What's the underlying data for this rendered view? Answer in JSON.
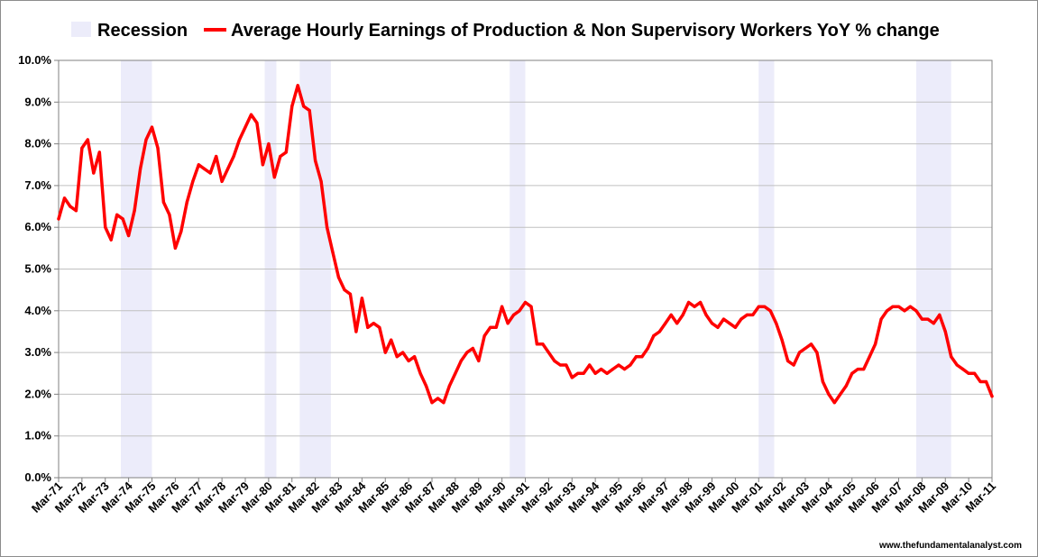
{
  "chart_data": {
    "type": "line",
    "title": "",
    "xlabel": "",
    "ylabel": "",
    "ylim": [
      0,
      10
    ],
    "y_ticks": [
      "0.0%",
      "1.0%",
      "2.0%",
      "3.0%",
      "4.0%",
      "5.0%",
      "6.0%",
      "7.0%",
      "8.0%",
      "9.0%",
      "10.0%"
    ],
    "x_ticks": [
      "Mar-71",
      "Mar-72",
      "Mar-73",
      "Mar-74",
      "Mar-75",
      "Mar-76",
      "Mar-77",
      "Mar-78",
      "Mar-79",
      "Mar-80",
      "Mar-81",
      "Mar-82",
      "Mar-83",
      "Mar-84",
      "Mar-85",
      "Mar-86",
      "Mar-87",
      "Mar-88",
      "Mar-89",
      "Mar-90",
      "Mar-91",
      "Mar-92",
      "Mar-93",
      "Mar-94",
      "Mar-95",
      "Mar-96",
      "Mar-97",
      "Mar-98",
      "Mar-99",
      "Mar-00",
      "Mar-01",
      "Mar-02",
      "Mar-03",
      "Mar-04",
      "Mar-05",
      "Mar-06",
      "Mar-07",
      "Mar-08",
      "Mar-09",
      "Mar-10",
      "Mar-11"
    ],
    "x_range": [
      "1971-03",
      "2011-03"
    ],
    "grid": "horizontal",
    "legend_position": "top",
    "legend": {
      "recession_label": "Recession",
      "series_label": "Average Hourly Earnings of Production & Non Supervisory Workers YoY % change"
    },
    "colors": {
      "series": "#ff0000",
      "recession": "#ececfa",
      "grid": "#c0c0c0",
      "axis": "#808080"
    },
    "recessions": [
      [
        "1973-11",
        "1975-03"
      ],
      [
        "1980-01",
        "1980-07"
      ],
      [
        "1981-07",
        "1982-11"
      ],
      [
        "1990-07",
        "1991-03"
      ],
      [
        "2001-03",
        "2001-11"
      ],
      [
        "2007-12",
        "2009-06"
      ]
    ],
    "series": [
      {
        "name": "Average Hourly Earnings of Production & Non Supervisory Workers YoY % change",
        "points": [
          [
            "1971-03",
            6.2
          ],
          [
            "1971-06",
            6.7
          ],
          [
            "1971-09",
            6.5
          ],
          [
            "1971-12",
            6.4
          ],
          [
            "1972-03",
            7.9
          ],
          [
            "1972-06",
            8.1
          ],
          [
            "1972-09",
            7.3
          ],
          [
            "1972-12",
            7.8
          ],
          [
            "1973-03",
            6.0
          ],
          [
            "1973-06",
            5.7
          ],
          [
            "1973-09",
            6.3
          ],
          [
            "1973-12",
            6.2
          ],
          [
            "1974-03",
            5.8
          ],
          [
            "1974-06",
            6.4
          ],
          [
            "1974-09",
            7.4
          ],
          [
            "1974-12",
            8.1
          ],
          [
            "1975-03",
            8.4
          ],
          [
            "1975-06",
            7.9
          ],
          [
            "1975-09",
            6.6
          ],
          [
            "1975-12",
            6.3
          ],
          [
            "1976-03",
            5.5
          ],
          [
            "1976-06",
            5.9
          ],
          [
            "1976-09",
            6.6
          ],
          [
            "1976-12",
            7.1
          ],
          [
            "1977-03",
            7.5
          ],
          [
            "1977-06",
            7.4
          ],
          [
            "1977-09",
            7.3
          ],
          [
            "1977-12",
            7.7
          ],
          [
            "1978-03",
            7.1
          ],
          [
            "1978-06",
            7.4
          ],
          [
            "1978-09",
            7.7
          ],
          [
            "1978-12",
            8.1
          ],
          [
            "1979-03",
            8.4
          ],
          [
            "1979-06",
            8.7
          ],
          [
            "1979-09",
            8.5
          ],
          [
            "1979-12",
            7.5
          ],
          [
            "1980-03",
            8.0
          ],
          [
            "1980-06",
            7.2
          ],
          [
            "1980-09",
            7.7
          ],
          [
            "1980-12",
            7.8
          ],
          [
            "1981-03",
            8.9
          ],
          [
            "1981-06",
            9.4
          ],
          [
            "1981-09",
            8.9
          ],
          [
            "1981-12",
            8.8
          ],
          [
            "1982-03",
            7.6
          ],
          [
            "1982-06",
            7.1
          ],
          [
            "1982-09",
            6.0
          ],
          [
            "1982-12",
            5.4
          ],
          [
            "1983-03",
            4.8
          ],
          [
            "1983-06",
            4.5
          ],
          [
            "1983-09",
            4.4
          ],
          [
            "1983-12",
            3.5
          ],
          [
            "1984-03",
            4.3
          ],
          [
            "1984-06",
            3.6
          ],
          [
            "1984-09",
            3.7
          ],
          [
            "1984-12",
            3.6
          ],
          [
            "1985-03",
            3.0
          ],
          [
            "1985-06",
            3.3
          ],
          [
            "1985-09",
            2.9
          ],
          [
            "1985-12",
            3.0
          ],
          [
            "1986-03",
            2.8
          ],
          [
            "1986-06",
            2.9
          ],
          [
            "1986-09",
            2.5
          ],
          [
            "1986-12",
            2.2
          ],
          [
            "1987-03",
            1.8
          ],
          [
            "1987-06",
            1.9
          ],
          [
            "1987-09",
            1.8
          ],
          [
            "1987-12",
            2.2
          ],
          [
            "1988-03",
            2.5
          ],
          [
            "1988-06",
            2.8
          ],
          [
            "1988-09",
            3.0
          ],
          [
            "1988-12",
            3.1
          ],
          [
            "1989-03",
            2.8
          ],
          [
            "1989-06",
            3.4
          ],
          [
            "1989-09",
            3.6
          ],
          [
            "1989-12",
            3.6
          ],
          [
            "1990-03",
            4.1
          ],
          [
            "1990-06",
            3.7
          ],
          [
            "1990-09",
            3.9
          ],
          [
            "1990-12",
            4.0
          ],
          [
            "1991-03",
            4.2
          ],
          [
            "1991-06",
            4.1
          ],
          [
            "1991-09",
            3.2
          ],
          [
            "1991-12",
            3.2
          ],
          [
            "1992-03",
            3.0
          ],
          [
            "1992-06",
            2.8
          ],
          [
            "1992-09",
            2.7
          ],
          [
            "1992-12",
            2.7
          ],
          [
            "1993-03",
            2.4
          ],
          [
            "1993-06",
            2.5
          ],
          [
            "1993-09",
            2.5
          ],
          [
            "1993-12",
            2.7
          ],
          [
            "1994-03",
            2.5
          ],
          [
            "1994-06",
            2.6
          ],
          [
            "1994-09",
            2.5
          ],
          [
            "1994-12",
            2.6
          ],
          [
            "1995-03",
            2.7
          ],
          [
            "1995-06",
            2.6
          ],
          [
            "1995-09",
            2.7
          ],
          [
            "1995-12",
            2.9
          ],
          [
            "1996-03",
            2.9
          ],
          [
            "1996-06",
            3.1
          ],
          [
            "1996-09",
            3.4
          ],
          [
            "1996-12",
            3.5
          ],
          [
            "1997-03",
            3.7
          ],
          [
            "1997-06",
            3.9
          ],
          [
            "1997-09",
            3.7
          ],
          [
            "1997-12",
            3.9
          ],
          [
            "1998-03",
            4.2
          ],
          [
            "1998-06",
            4.1
          ],
          [
            "1998-09",
            4.2
          ],
          [
            "1998-12",
            3.9
          ],
          [
            "1999-03",
            3.7
          ],
          [
            "1999-06",
            3.6
          ],
          [
            "1999-09",
            3.8
          ],
          [
            "1999-12",
            3.7
          ],
          [
            "2000-03",
            3.6
          ],
          [
            "2000-06",
            3.8
          ],
          [
            "2000-09",
            3.9
          ],
          [
            "2000-12",
            3.9
          ],
          [
            "2001-03",
            4.1
          ],
          [
            "2001-06",
            4.1
          ],
          [
            "2001-09",
            4.0
          ],
          [
            "2001-12",
            3.7
          ],
          [
            "2002-03",
            3.3
          ],
          [
            "2002-06",
            2.8
          ],
          [
            "2002-09",
            2.7
          ],
          [
            "2002-12",
            3.0
          ],
          [
            "2003-03",
            3.1
          ],
          [
            "2003-06",
            3.2
          ],
          [
            "2003-09",
            3.0
          ],
          [
            "2003-12",
            2.3
          ],
          [
            "2004-03",
            2.0
          ],
          [
            "2004-06",
            1.8
          ],
          [
            "2004-09",
            2.0
          ],
          [
            "2004-12",
            2.2
          ],
          [
            "2005-03",
            2.5
          ],
          [
            "2005-06",
            2.6
          ],
          [
            "2005-09",
            2.6
          ],
          [
            "2005-12",
            2.9
          ],
          [
            "2006-03",
            3.2
          ],
          [
            "2006-06",
            3.8
          ],
          [
            "2006-09",
            4.0
          ],
          [
            "2006-12",
            4.1
          ],
          [
            "2007-03",
            4.1
          ],
          [
            "2007-06",
            4.0
          ],
          [
            "2007-09",
            4.1
          ],
          [
            "2007-12",
            4.0
          ],
          [
            "2008-03",
            3.8
          ],
          [
            "2008-06",
            3.8
          ],
          [
            "2008-09",
            3.7
          ],
          [
            "2008-12",
            3.9
          ],
          [
            "2009-03",
            3.5
          ],
          [
            "2009-06",
            2.9
          ],
          [
            "2009-09",
            2.7
          ],
          [
            "2009-12",
            2.6
          ],
          [
            "2010-03",
            2.5
          ],
          [
            "2010-06",
            2.5
          ],
          [
            "2010-09",
            2.3
          ],
          [
            "2010-12",
            2.3
          ],
          [
            "2011-03",
            1.95
          ]
        ]
      }
    ]
  },
  "footer": {
    "credit": "www.thefundamentalanalyst.com"
  }
}
